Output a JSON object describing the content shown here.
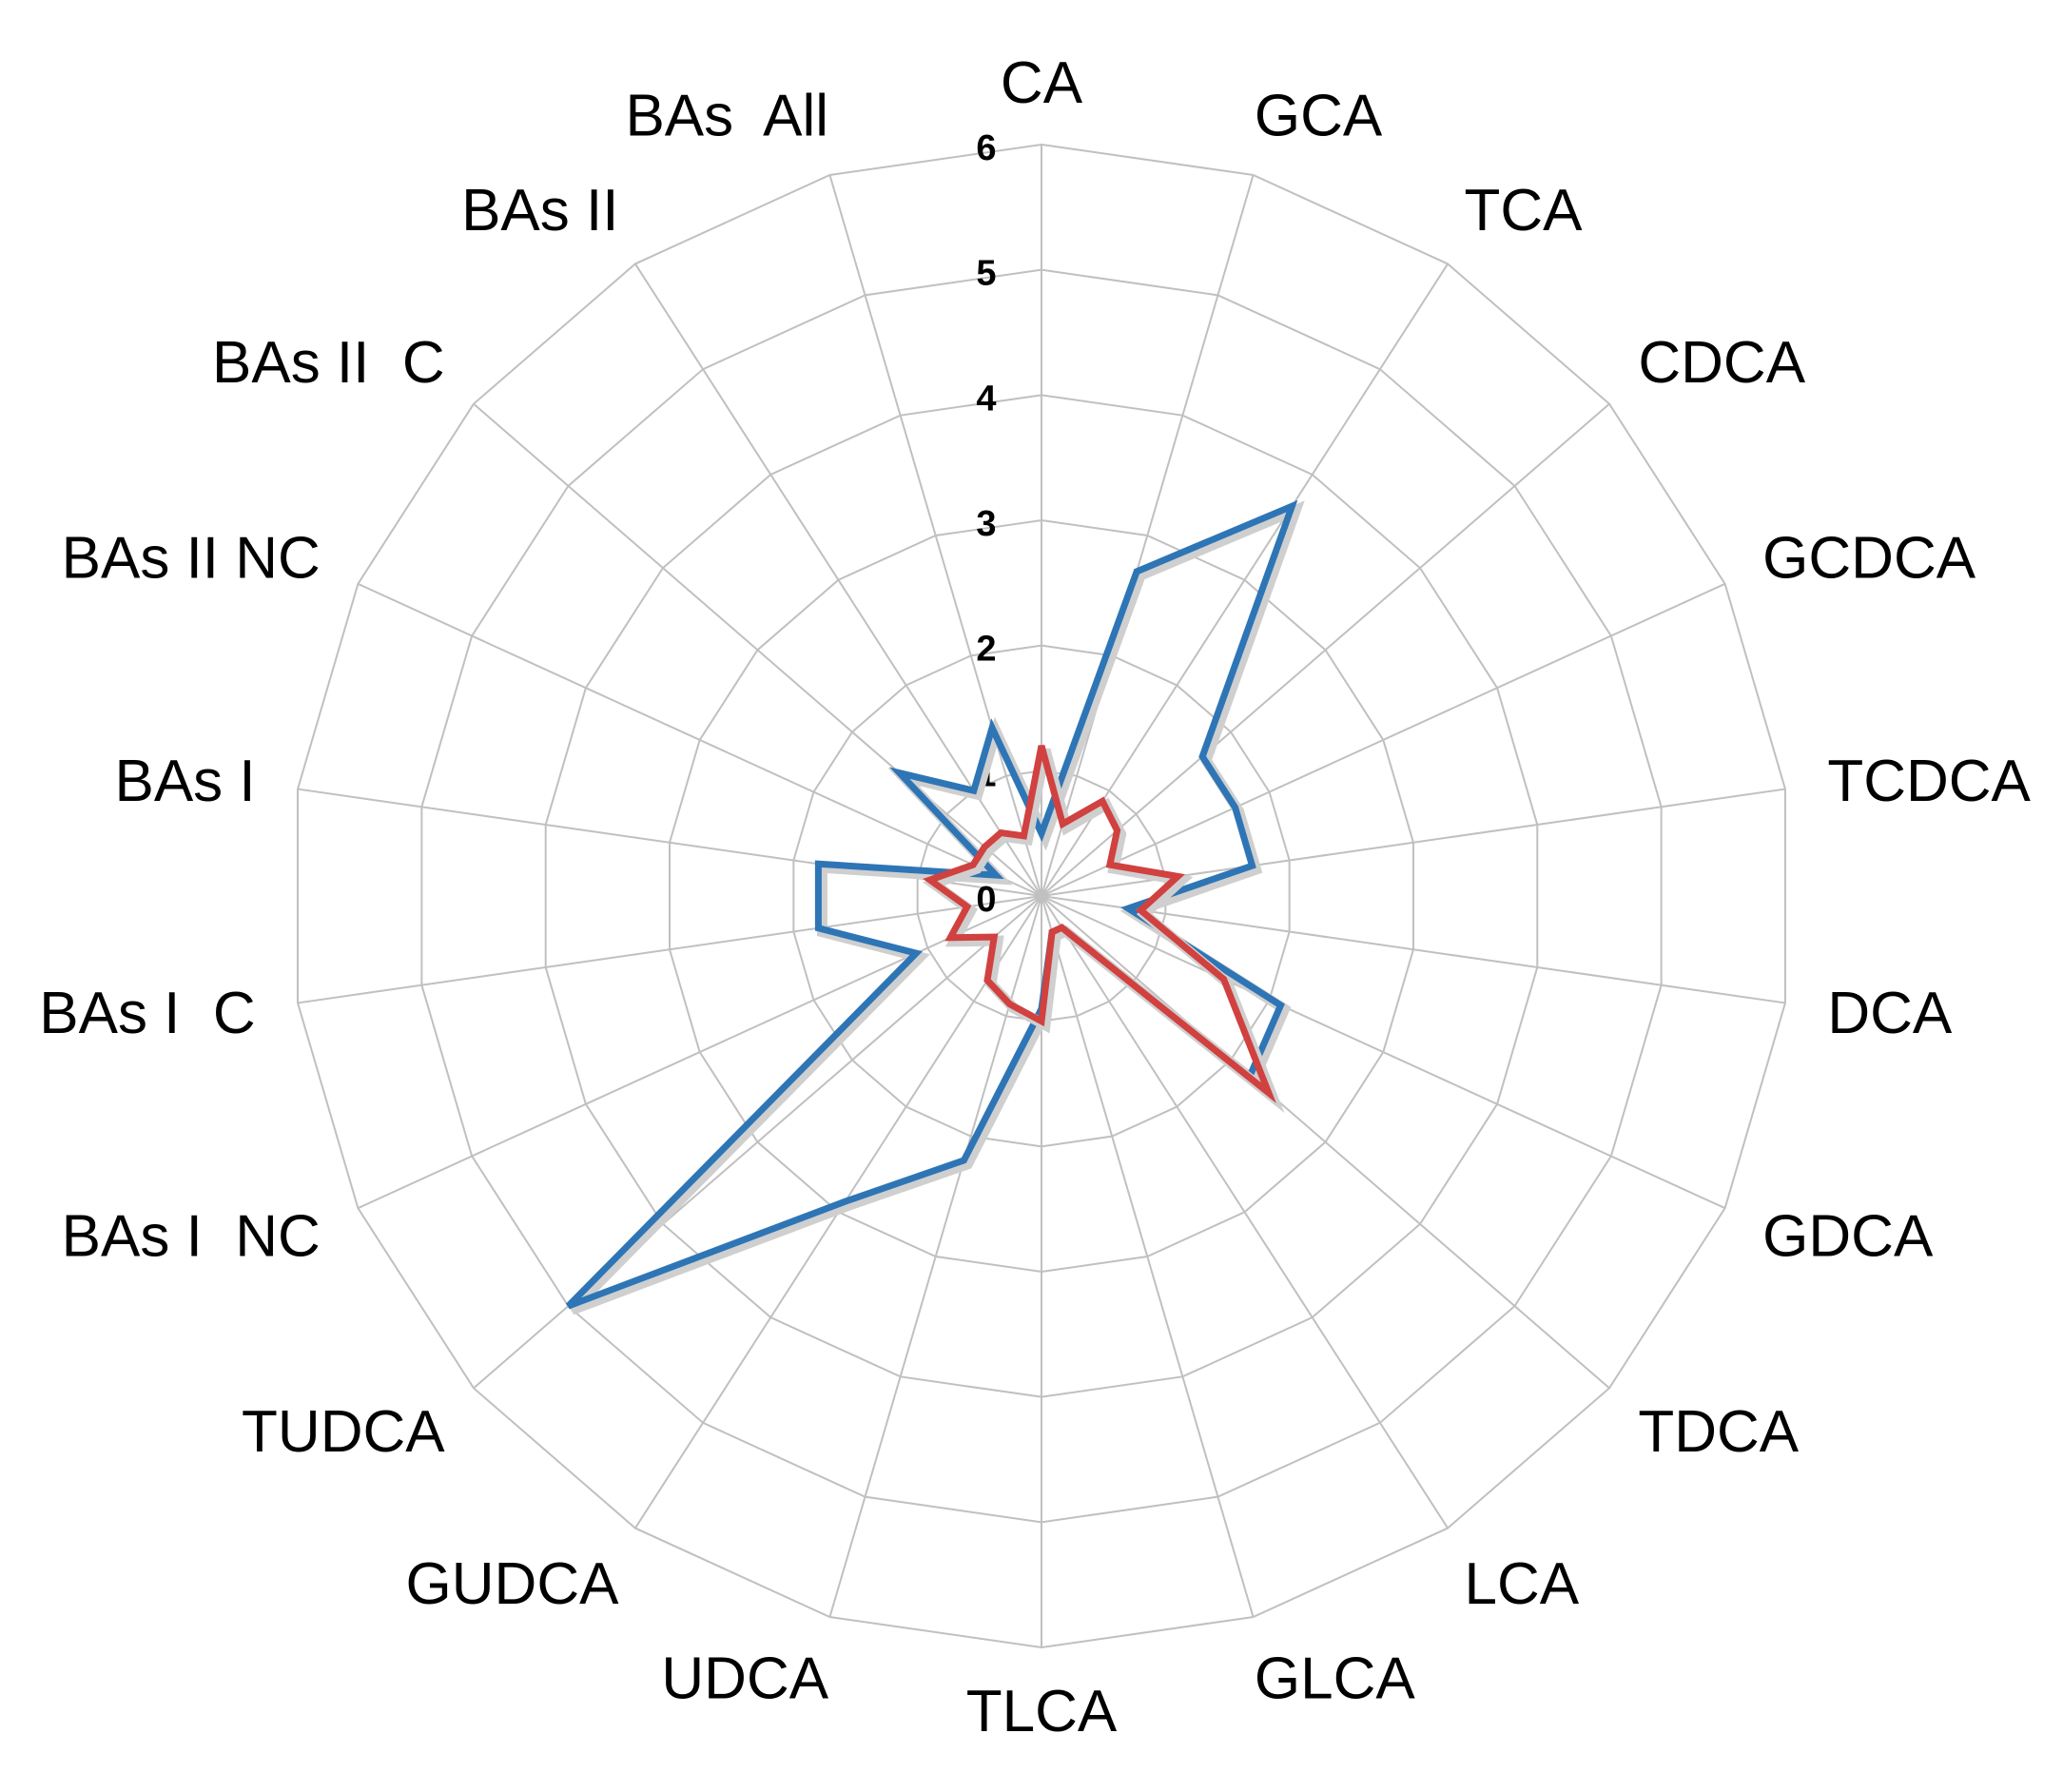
{
  "chart_data": {
    "type": "radar",
    "categories": [
      "CA",
      "GCA",
      "TCA",
      "CDCA",
      "GCDCA",
      "TCDCA",
      "DCA",
      "GDCA",
      "TDCA",
      "LCA",
      "GLCA",
      "TLCA",
      "UDCA",
      "GUDCA",
      "TUDCA",
      "BAs I  NC",
      "BAs I  C",
      "BAs I",
      "BAs II NC",
      "BAs II  C",
      "BAs II",
      "BAs  All"
    ],
    "rlim": [
      0,
      6
    ],
    "ticks": [
      "0",
      "1",
      "2",
      "3",
      "4",
      "5",
      "6"
    ],
    "grid": true,
    "legend": "none",
    "series": [
      {
        "color": "#2e75b6",
        "values": [
          0.5,
          2.7,
          3.7,
          1.7,
          1.7,
          1.7,
          0.7,
          2.1,
          2.2,
          0.3,
          0.3,
          0.9,
          2.2,
          2.9,
          5.0,
          1.1,
          1.8,
          1.8,
          0.4,
          1.5,
          1.0,
          1.4
        ]
      },
      {
        "color": "#d0413f",
        "values": [
          1.2,
          0.6,
          0.9,
          0.8,
          0.6,
          1.1,
          0.8,
          1.6,
          2.4,
          0.3,
          0.3,
          1.0,
          0.9,
          0.8,
          0.5,
          0.8,
          0.6,
          0.9,
          0.6,
          0.6,
          0.6,
          0.5
        ]
      }
    ]
  }
}
